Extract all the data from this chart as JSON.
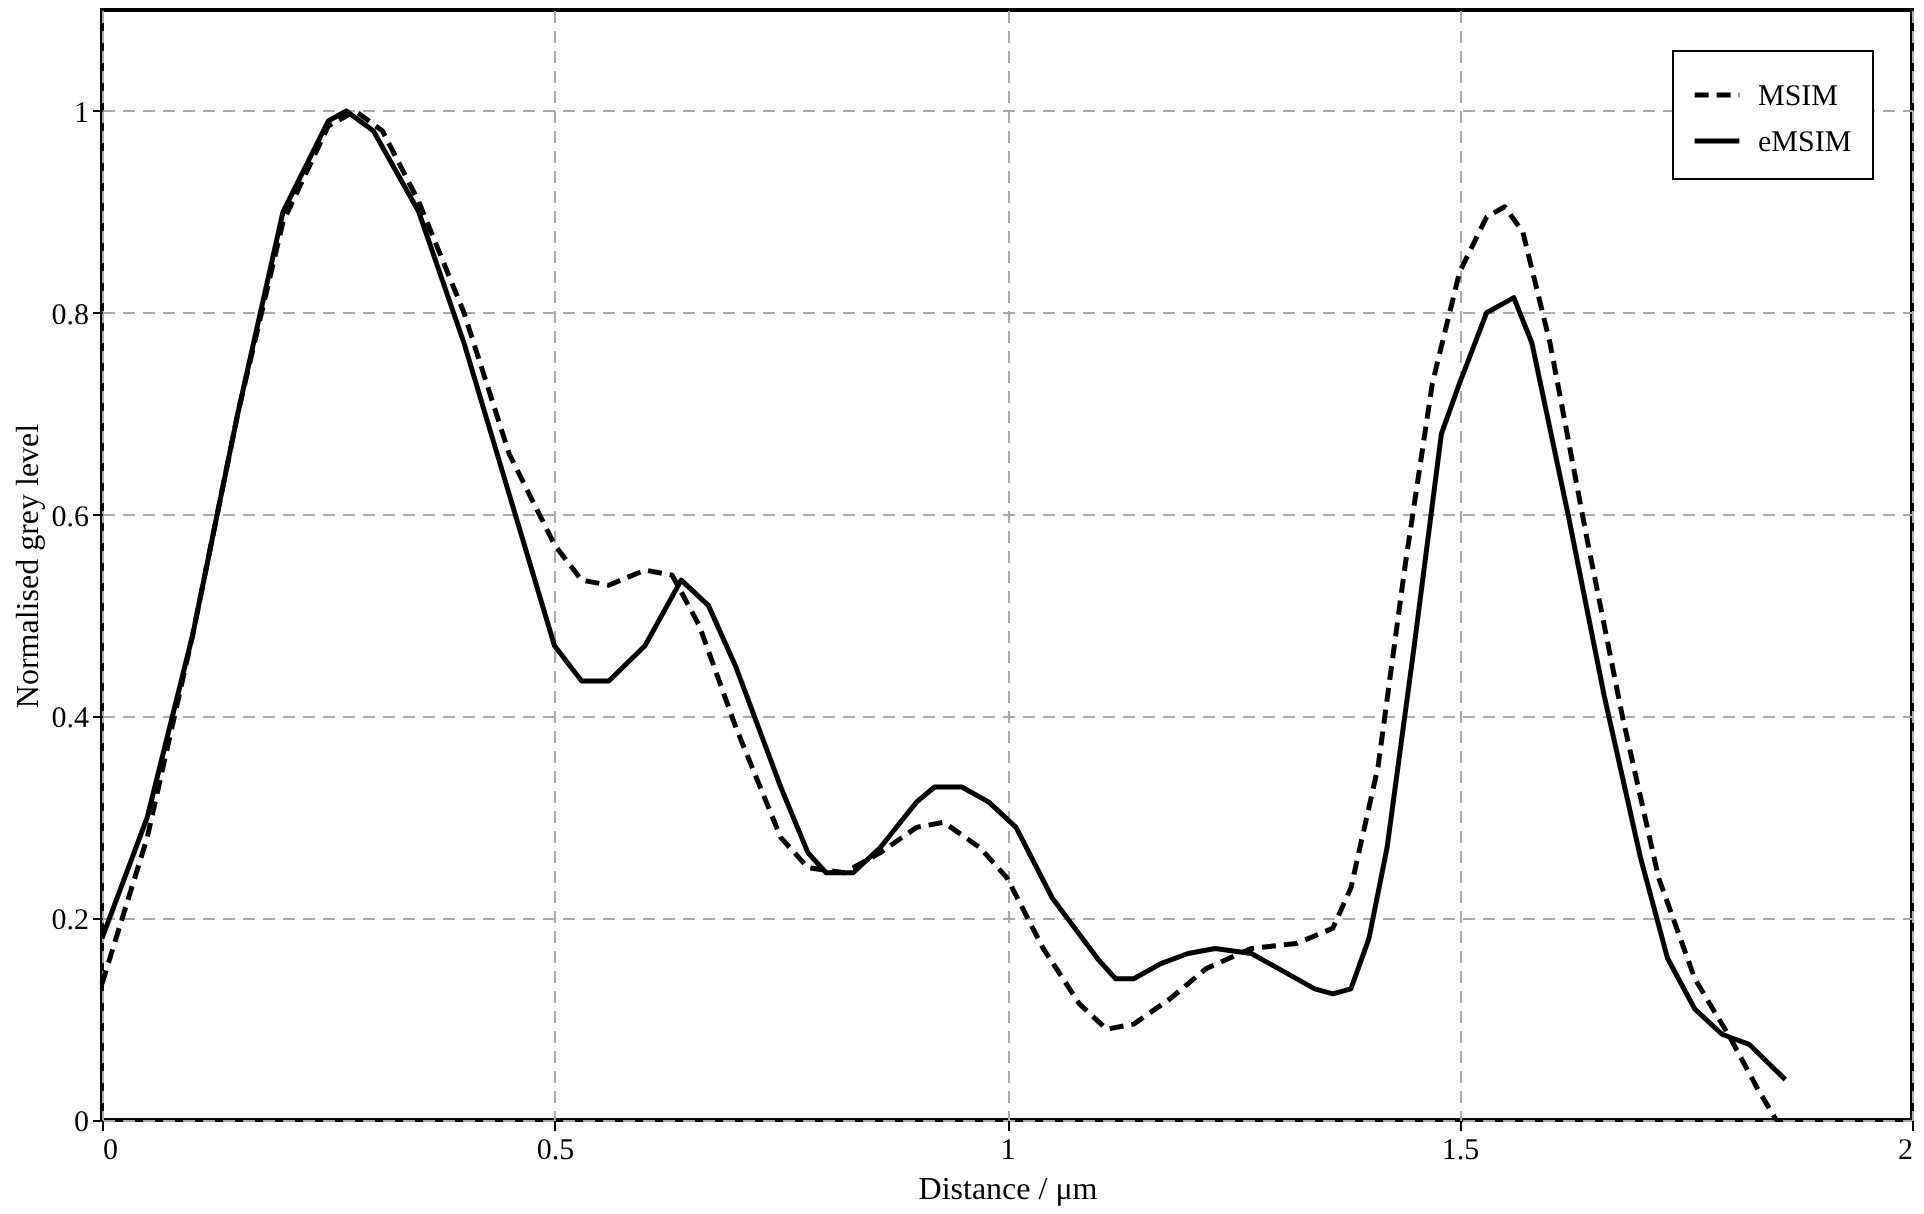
{
  "chart_data": {
    "type": "line",
    "xlabel": "Distance / μm",
    "ylabel": "Normalised grey level",
    "xlim": [
      0,
      2
    ],
    "xticks": [
      0,
      0.5,
      1,
      1.5,
      2
    ],
    "ylim": [
      0,
      1.1
    ],
    "yticks": [
      0,
      0.2,
      0.4,
      0.6,
      0.8,
      1
    ],
    "grid": true,
    "legend": "top right",
    "marker": "none",
    "series": [
      {
        "name": "MSIM",
        "color": "#000000",
        "line_style": "dashed",
        "x": [
          0,
          0.05,
          0.1,
          0.15,
          0.2,
          0.25,
          0.28,
          0.31,
          0.35,
          0.4,
          0.45,
          0.5,
          0.53,
          0.56,
          0.6,
          0.63,
          0.66,
          0.7,
          0.75,
          0.78,
          0.82,
          0.86,
          0.9,
          0.93,
          0.97,
          1.0,
          1.04,
          1.08,
          1.11,
          1.14,
          1.18,
          1.22,
          1.27,
          1.32,
          1.36,
          1.38,
          1.41,
          1.44,
          1.47,
          1.5,
          1.53,
          1.55,
          1.57,
          1.6,
          1.64,
          1.68,
          1.72,
          1.76,
          1.8,
          1.83,
          1.85
        ],
        "values": [
          0.135,
          0.28,
          0.48,
          0.7,
          0.89,
          0.985,
          1.0,
          0.98,
          0.91,
          0.8,
          0.66,
          0.57,
          0.535,
          0.53,
          0.545,
          0.54,
          0.49,
          0.39,
          0.28,
          0.25,
          0.245,
          0.265,
          0.29,
          0.295,
          0.27,
          0.24,
          0.17,
          0.115,
          0.09,
          0.095,
          0.12,
          0.15,
          0.17,
          0.175,
          0.19,
          0.23,
          0.35,
          0.55,
          0.73,
          0.84,
          0.895,
          0.905,
          0.88,
          0.77,
          0.58,
          0.4,
          0.24,
          0.14,
          0.08,
          0.03,
          0.0
        ]
      },
      {
        "name": "eMSIM",
        "color": "#000000",
        "line_style": "solid",
        "x": [
          0,
          0.05,
          0.1,
          0.15,
          0.2,
          0.25,
          0.27,
          0.3,
          0.35,
          0.4,
          0.45,
          0.5,
          0.53,
          0.56,
          0.6,
          0.64,
          0.67,
          0.7,
          0.75,
          0.78,
          0.8,
          0.83,
          0.86,
          0.9,
          0.92,
          0.95,
          0.98,
          1.01,
          1.05,
          1.1,
          1.12,
          1.14,
          1.17,
          1.2,
          1.23,
          1.27,
          1.3,
          1.34,
          1.36,
          1.38,
          1.4,
          1.42,
          1.45,
          1.48,
          1.5,
          1.53,
          1.56,
          1.58,
          1.62,
          1.66,
          1.7,
          1.73,
          1.76,
          1.79,
          1.82,
          1.86
        ],
        "values": [
          0.18,
          0.3,
          0.48,
          0.7,
          0.9,
          0.99,
          1.0,
          0.98,
          0.9,
          0.77,
          0.62,
          0.47,
          0.435,
          0.435,
          0.47,
          0.535,
          0.51,
          0.45,
          0.33,
          0.265,
          0.245,
          0.245,
          0.27,
          0.315,
          0.33,
          0.33,
          0.315,
          0.29,
          0.22,
          0.16,
          0.14,
          0.14,
          0.155,
          0.165,
          0.17,
          0.165,
          0.15,
          0.13,
          0.125,
          0.13,
          0.18,
          0.27,
          0.47,
          0.68,
          0.73,
          0.8,
          0.815,
          0.77,
          0.6,
          0.42,
          0.26,
          0.16,
          0.11,
          0.085,
          0.075,
          0.04
        ]
      }
    ]
  }
}
